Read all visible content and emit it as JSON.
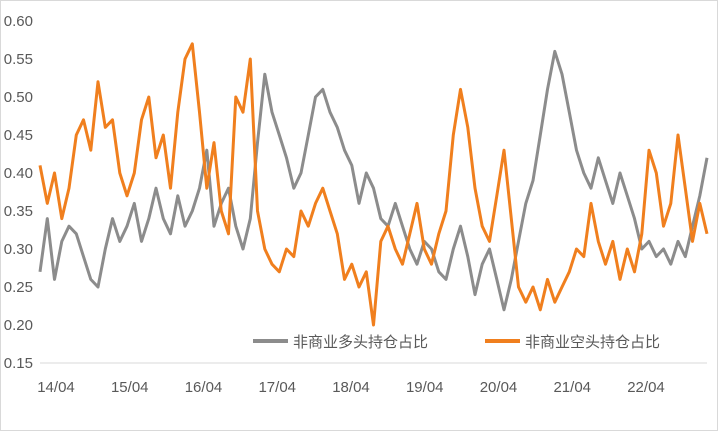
{
  "chart_data": {
    "type": "line",
    "title": "",
    "xlabel": "",
    "ylabel": "",
    "ylim": [
      0.15,
      0.6
    ],
    "y_ticks": [
      "0.15",
      "0.20",
      "0.25",
      "0.30",
      "0.35",
      "0.40",
      "0.45",
      "0.50",
      "0.55",
      "0.60"
    ],
    "x_ticks": [
      "14/04",
      "15/04",
      "16/04",
      "17/04",
      "18/04",
      "19/04",
      "20/04",
      "21/04",
      "22/04"
    ],
    "grid": false,
    "legend_position": "bottom-right",
    "series": [
      {
        "name": "非商业多头持仓占比",
        "color": "#8c8c8c",
        "points": [
          [
            0.0,
            0.27
          ],
          [
            0.25,
            0.34
          ],
          [
            0.5,
            0.26
          ],
          [
            0.75,
            0.31
          ],
          [
            1.0,
            0.33
          ],
          [
            1.25,
            0.32
          ],
          [
            1.5,
            0.29
          ],
          [
            1.75,
            0.26
          ],
          [
            2.0,
            0.25
          ],
          [
            2.25,
            0.3
          ],
          [
            2.5,
            0.34
          ],
          [
            2.75,
            0.31
          ],
          [
            3.0,
            0.33
          ],
          [
            3.25,
            0.36
          ],
          [
            3.5,
            0.31
          ],
          [
            3.75,
            0.34
          ],
          [
            4.0,
            0.38
          ],
          [
            4.25,
            0.34
          ],
          [
            4.5,
            0.32
          ],
          [
            4.75,
            0.37
          ],
          [
            5.0,
            0.33
          ],
          [
            5.25,
            0.35
          ],
          [
            5.5,
            0.38
          ],
          [
            5.75,
            0.43
          ],
          [
            6.0,
            0.33
          ],
          [
            6.25,
            0.36
          ],
          [
            6.5,
            0.38
          ],
          [
            6.75,
            0.33
          ],
          [
            7.0,
            0.3
          ],
          [
            7.25,
            0.34
          ],
          [
            7.5,
            0.44
          ],
          [
            7.75,
            0.53
          ],
          [
            8.0,
            0.48
          ],
          [
            8.25,
            0.45
          ],
          [
            8.5,
            0.42
          ],
          [
            8.75,
            0.38
          ],
          [
            9.0,
            0.4
          ],
          [
            9.25,
            0.45
          ],
          [
            9.5,
            0.5
          ],
          [
            9.75,
            0.51
          ],
          [
            10.0,
            0.48
          ],
          [
            10.25,
            0.46
          ],
          [
            10.5,
            0.43
          ],
          [
            10.75,
            0.41
          ],
          [
            11.0,
            0.36
          ],
          [
            11.25,
            0.4
          ],
          [
            11.5,
            0.38
          ],
          [
            11.75,
            0.34
          ],
          [
            12.0,
            0.33
          ],
          [
            12.25,
            0.36
          ],
          [
            12.5,
            0.33
          ],
          [
            12.75,
            0.3
          ],
          [
            13.0,
            0.28
          ],
          [
            13.25,
            0.31
          ],
          [
            13.5,
            0.3
          ],
          [
            13.75,
            0.27
          ],
          [
            14.0,
            0.26
          ],
          [
            14.25,
            0.3
          ],
          [
            14.5,
            0.33
          ],
          [
            14.75,
            0.29
          ],
          [
            15.0,
            0.24
          ],
          [
            15.25,
            0.28
          ],
          [
            15.5,
            0.3
          ],
          [
            15.75,
            0.26
          ],
          [
            16.0,
            0.22
          ],
          [
            16.25,
            0.26
          ],
          [
            16.5,
            0.31
          ],
          [
            16.75,
            0.36
          ],
          [
            17.0,
            0.39
          ],
          [
            17.25,
            0.45
          ],
          [
            17.5,
            0.51
          ],
          [
            17.75,
            0.56
          ],
          [
            18.0,
            0.53
          ],
          [
            18.25,
            0.48
          ],
          [
            18.5,
            0.43
          ],
          [
            18.75,
            0.4
          ],
          [
            19.0,
            0.38
          ],
          [
            19.25,
            0.42
          ],
          [
            19.5,
            0.39
          ],
          [
            19.75,
            0.36
          ],
          [
            20.0,
            0.4
          ],
          [
            20.25,
            0.37
          ],
          [
            20.5,
            0.34
          ],
          [
            20.75,
            0.3
          ],
          [
            21.0,
            0.31
          ],
          [
            21.25,
            0.29
          ],
          [
            21.5,
            0.3
          ],
          [
            21.75,
            0.28
          ],
          [
            22.0,
            0.31
          ],
          [
            22.25,
            0.29
          ],
          [
            22.5,
            0.33
          ],
          [
            22.75,
            0.37
          ],
          [
            23.0,
            0.42
          ]
        ]
      },
      {
        "name": "非商业空头持仓占比",
        "color": "#f07f1e",
        "points": [
          [
            0.0,
            0.41
          ],
          [
            0.25,
            0.36
          ],
          [
            0.5,
            0.4
          ],
          [
            0.75,
            0.34
          ],
          [
            1.0,
            0.38
          ],
          [
            1.25,
            0.45
          ],
          [
            1.5,
            0.47
          ],
          [
            1.75,
            0.43
          ],
          [
            2.0,
            0.52
          ],
          [
            2.25,
            0.46
          ],
          [
            2.5,
            0.47
          ],
          [
            2.75,
            0.4
          ],
          [
            3.0,
            0.37
          ],
          [
            3.25,
            0.4
          ],
          [
            3.5,
            0.47
          ],
          [
            3.75,
            0.5
          ],
          [
            4.0,
            0.42
          ],
          [
            4.25,
            0.45
          ],
          [
            4.5,
            0.38
          ],
          [
            4.75,
            0.48
          ],
          [
            5.0,
            0.55
          ],
          [
            5.25,
            0.57
          ],
          [
            5.5,
            0.48
          ],
          [
            5.75,
            0.38
          ],
          [
            6.0,
            0.44
          ],
          [
            6.25,
            0.35
          ],
          [
            6.5,
            0.32
          ],
          [
            6.75,
            0.5
          ],
          [
            7.0,
            0.48
          ],
          [
            7.25,
            0.55
          ],
          [
            7.5,
            0.35
          ],
          [
            7.75,
            0.3
          ],
          [
            8.0,
            0.28
          ],
          [
            8.25,
            0.27
          ],
          [
            8.5,
            0.3
          ],
          [
            8.75,
            0.29
          ],
          [
            9.0,
            0.35
          ],
          [
            9.25,
            0.33
          ],
          [
            9.5,
            0.36
          ],
          [
            9.75,
            0.38
          ],
          [
            10.0,
            0.35
          ],
          [
            10.25,
            0.32
          ],
          [
            10.5,
            0.26
          ],
          [
            10.75,
            0.28
          ],
          [
            11.0,
            0.25
          ],
          [
            11.25,
            0.27
          ],
          [
            11.5,
            0.2
          ],
          [
            11.75,
            0.31
          ],
          [
            12.0,
            0.33
          ],
          [
            12.25,
            0.3
          ],
          [
            12.5,
            0.28
          ],
          [
            12.75,
            0.32
          ],
          [
            13.0,
            0.36
          ],
          [
            13.25,
            0.3
          ],
          [
            13.5,
            0.28
          ],
          [
            13.75,
            0.32
          ],
          [
            14.0,
            0.35
          ],
          [
            14.25,
            0.45
          ],
          [
            14.5,
            0.51
          ],
          [
            14.75,
            0.46
          ],
          [
            15.0,
            0.38
          ],
          [
            15.25,
            0.33
          ],
          [
            15.5,
            0.31
          ],
          [
            15.75,
            0.37
          ],
          [
            16.0,
            0.43
          ],
          [
            16.25,
            0.34
          ],
          [
            16.5,
            0.25
          ],
          [
            16.75,
            0.23
          ],
          [
            17.0,
            0.25
          ],
          [
            17.25,
            0.22
          ],
          [
            17.5,
            0.26
          ],
          [
            17.75,
            0.23
          ],
          [
            18.0,
            0.25
          ],
          [
            18.25,
            0.27
          ],
          [
            18.5,
            0.3
          ],
          [
            18.75,
            0.29
          ],
          [
            19.0,
            0.36
          ],
          [
            19.25,
            0.31
          ],
          [
            19.5,
            0.28
          ],
          [
            19.75,
            0.31
          ],
          [
            20.0,
            0.26
          ],
          [
            20.25,
            0.3
          ],
          [
            20.5,
            0.27
          ],
          [
            20.75,
            0.32
          ],
          [
            21.0,
            0.43
          ],
          [
            21.25,
            0.4
          ],
          [
            21.5,
            0.33
          ],
          [
            21.75,
            0.36
          ],
          [
            22.0,
            0.45
          ],
          [
            22.25,
            0.38
          ],
          [
            22.5,
            0.31
          ],
          [
            22.75,
            0.36
          ],
          [
            23.0,
            0.32
          ]
        ]
      }
    ]
  }
}
